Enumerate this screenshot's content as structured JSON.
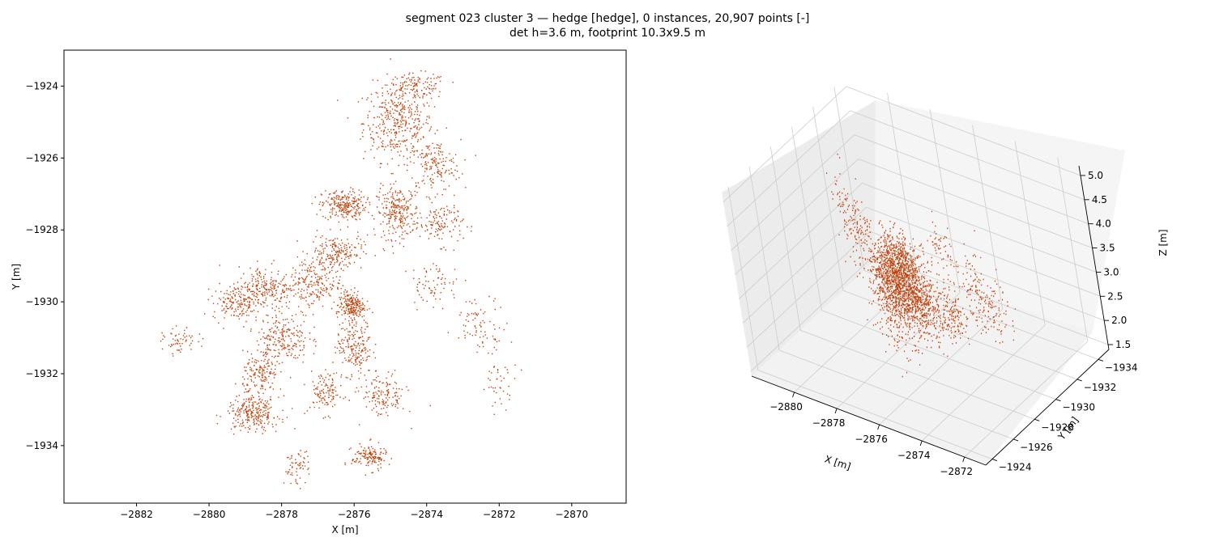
{
  "figure": {
    "title_line1": "segment 023 cluster 3 — hedge [hedge], 0 instances, 20,907 points [-]",
    "title_line2": "det h=3.6 m, footprint 10.3x9.5 m"
  },
  "colors": {
    "points": "#c1440e",
    "pane": "#f2f2f2",
    "grid": "#cccccc",
    "axes": "#000000"
  },
  "chart_data": [
    {
      "type": "scatter",
      "view": "top-down 2D",
      "xlabel": "X [m]",
      "ylabel": "Y [m]",
      "xlim": [
        -2884,
        -2868.5
      ],
      "ylim": [
        -1935.6,
        -1923
      ],
      "xticks": [
        -2882,
        -2880,
        -2878,
        -2876,
        -2874,
        -2872,
        -2870
      ],
      "yticks": [
        -1924,
        -1926,
        -1928,
        -1930,
        -1932,
        -1934
      ],
      "xtick_labels": [
        "−2882",
        "−2880",
        "−2878",
        "−2876",
        "−2874",
        "−2872",
        "−2870"
      ],
      "ytick_labels": [
        "−1924",
        "−1926",
        "−1928",
        "−1930",
        "−1932",
        "−1934"
      ],
      "grid": false,
      "series": [
        {
          "clusters": [
            {
              "x": -2874.8,
              "y": -1925.0,
              "sx": 0.8,
              "sy": 0.9,
              "n": 380
            },
            {
              "x": -2874.3,
              "y": -1924.0,
              "sx": 0.7,
              "sy": 0.3,
              "n": 120
            },
            {
              "x": -2873.8,
              "y": -1926.2,
              "sx": 0.6,
              "sy": 0.6,
              "n": 160
            },
            {
              "x": -2876.3,
              "y": -1927.3,
              "sx": 0.5,
              "sy": 0.35,
              "n": 240
            },
            {
              "x": -2874.8,
              "y": -1927.5,
              "sx": 0.5,
              "sy": 0.6,
              "n": 260
            },
            {
              "x": -2873.6,
              "y": -1927.8,
              "sx": 0.5,
              "sy": 0.5,
              "n": 120
            },
            {
              "x": -2876.5,
              "y": -1928.6,
              "sx": 0.6,
              "sy": 0.4,
              "n": 180
            },
            {
              "x": -2877.2,
              "y": -1929.5,
              "sx": 0.7,
              "sy": 0.6,
              "n": 240
            },
            {
              "x": -2878.5,
              "y": -1929.6,
              "sx": 0.6,
              "sy": 0.5,
              "n": 200
            },
            {
              "x": -2879.3,
              "y": -1930.0,
              "sx": 0.5,
              "sy": 0.4,
              "n": 150
            },
            {
              "x": -2876.1,
              "y": -1930.1,
              "sx": 0.3,
              "sy": 0.3,
              "n": 200
            },
            {
              "x": -2876.0,
              "y": -1931.2,
              "sx": 0.4,
              "sy": 0.7,
              "n": 200
            },
            {
              "x": -2878.0,
              "y": -1931.0,
              "sx": 0.6,
              "sy": 0.6,
              "n": 220
            },
            {
              "x": -2878.6,
              "y": -1932.0,
              "sx": 0.4,
              "sy": 0.5,
              "n": 150
            },
            {
              "x": -2878.8,
              "y": -1933.1,
              "sx": 0.6,
              "sy": 0.4,
              "n": 260
            },
            {
              "x": -2876.8,
              "y": -1932.5,
              "sx": 0.4,
              "sy": 0.5,
              "n": 120
            },
            {
              "x": -2875.2,
              "y": -1932.6,
              "sx": 0.5,
              "sy": 0.5,
              "n": 140
            },
            {
              "x": -2875.6,
              "y": -1934.3,
              "sx": 0.4,
              "sy": 0.3,
              "n": 140
            },
            {
              "x": -2877.6,
              "y": -1934.6,
              "sx": 0.3,
              "sy": 0.4,
              "n": 60
            },
            {
              "x": -2880.8,
              "y": -1931.1,
              "sx": 0.4,
              "sy": 0.3,
              "n": 60
            },
            {
              "x": -2872.5,
              "y": -1930.6,
              "sx": 0.6,
              "sy": 0.6,
              "n": 80
            },
            {
              "x": -2873.8,
              "y": -1929.5,
              "sx": 0.6,
              "sy": 0.5,
              "n": 70
            },
            {
              "x": -2872.0,
              "y": -1932.3,
              "sx": 0.4,
              "sy": 0.5,
              "n": 40
            }
          ]
        }
      ]
    },
    {
      "type": "scatter",
      "view": "3D perspective",
      "xlabel": "X [m]",
      "ylabel": "Y [m]",
      "zlabel": "Z [m]",
      "xticks": [
        -2880,
        -2878,
        -2876,
        -2874,
        -2872
      ],
      "yticks": [
        -1924,
        -1926,
        -1928,
        -1930,
        -1932,
        -1934
      ],
      "zticks": [
        1.5,
        2.0,
        2.5,
        3.0,
        3.5,
        4.0,
        4.5,
        5.0
      ],
      "xtick_labels": [
        "−2880",
        "−2878",
        "−2876",
        "−2874",
        "−2872"
      ],
      "ytick_labels": [
        "−1924",
        "−1926",
        "−1928",
        "−1930",
        "−1932",
        "−1934"
      ],
      "ztick_labels": [
        "1.5",
        "2.0",
        "2.5",
        "3.0",
        "3.5",
        "4.0",
        "4.5",
        "5.0"
      ],
      "grid": true,
      "xlim": [
        -2882,
        -2871
      ],
      "ylim": [
        -1935,
        -1923.4
      ],
      "zlim": [
        1.4,
        5.2
      ],
      "series": [
        {
          "clusters": [
            {
              "x": -2879.0,
              "y": -1931.0,
              "z": 2.2,
              "sx": 0.7,
              "sy": 0.8,
              "sz": 0.35,
              "n": 320
            },
            {
              "x": -2878.3,
              "y": -1929.8,
              "z": 3.0,
              "sx": 0.6,
              "sy": 0.6,
              "sz": 0.3,
              "n": 220
            },
            {
              "x": -2877.3,
              "y": -1929.0,
              "z": 3.5,
              "sx": 0.6,
              "sy": 0.6,
              "sz": 0.3,
              "n": 240
            },
            {
              "x": -2876.3,
              "y": -1928.3,
              "z": 3.4,
              "sx": 0.6,
              "sy": 0.6,
              "sz": 0.35,
              "n": 260
            },
            {
              "x": -2876.5,
              "y": -1931.5,
              "z": 1.9,
              "sx": 0.5,
              "sy": 0.5,
              "sz": 0.3,
              "n": 160
            },
            {
              "x": -2875.0,
              "y": -1927.0,
              "z": 3.3,
              "sx": 0.6,
              "sy": 0.6,
              "sz": 0.35,
              "n": 240
            },
            {
              "x": -2874.5,
              "y": -1925.3,
              "z": 3.9,
              "sx": 0.7,
              "sy": 0.8,
              "sz": 0.45,
              "n": 360
            },
            {
              "x": -2874.2,
              "y": -1924.1,
              "z": 4.6,
              "sx": 0.5,
              "sy": 0.4,
              "sz": 0.35,
              "n": 140
            },
            {
              "x": -2876.5,
              "y": -1926.8,
              "z": 2.8,
              "sx": 0.5,
              "sy": 0.5,
              "sz": 0.5,
              "n": 120
            },
            {
              "x": -2878.7,
              "y": -1928.7,
              "z": 3.9,
              "sx": 0.5,
              "sy": 0.5,
              "sz": 0.35,
              "n": 120
            },
            {
              "x": -2880.5,
              "y": -1930.5,
              "z": 3.9,
              "sx": 0.3,
              "sy": 0.4,
              "sz": 0.35,
              "n": 40
            },
            {
              "x": -2876.0,
              "y": -1933.0,
              "z": 2.2,
              "sx": 0.5,
              "sy": 0.6,
              "sz": 0.35,
              "n": 100
            },
            {
              "x": -2873.2,
              "y": -1929.8,
              "z": 2.9,
              "sx": 0.6,
              "sy": 0.5,
              "sz": 0.4,
              "n": 80
            },
            {
              "x": -2877.7,
              "y": -1933.6,
              "z": 2.5,
              "sx": 0.5,
              "sy": 0.5,
              "sz": 0.4,
              "n": 70
            }
          ]
        }
      ]
    }
  ]
}
